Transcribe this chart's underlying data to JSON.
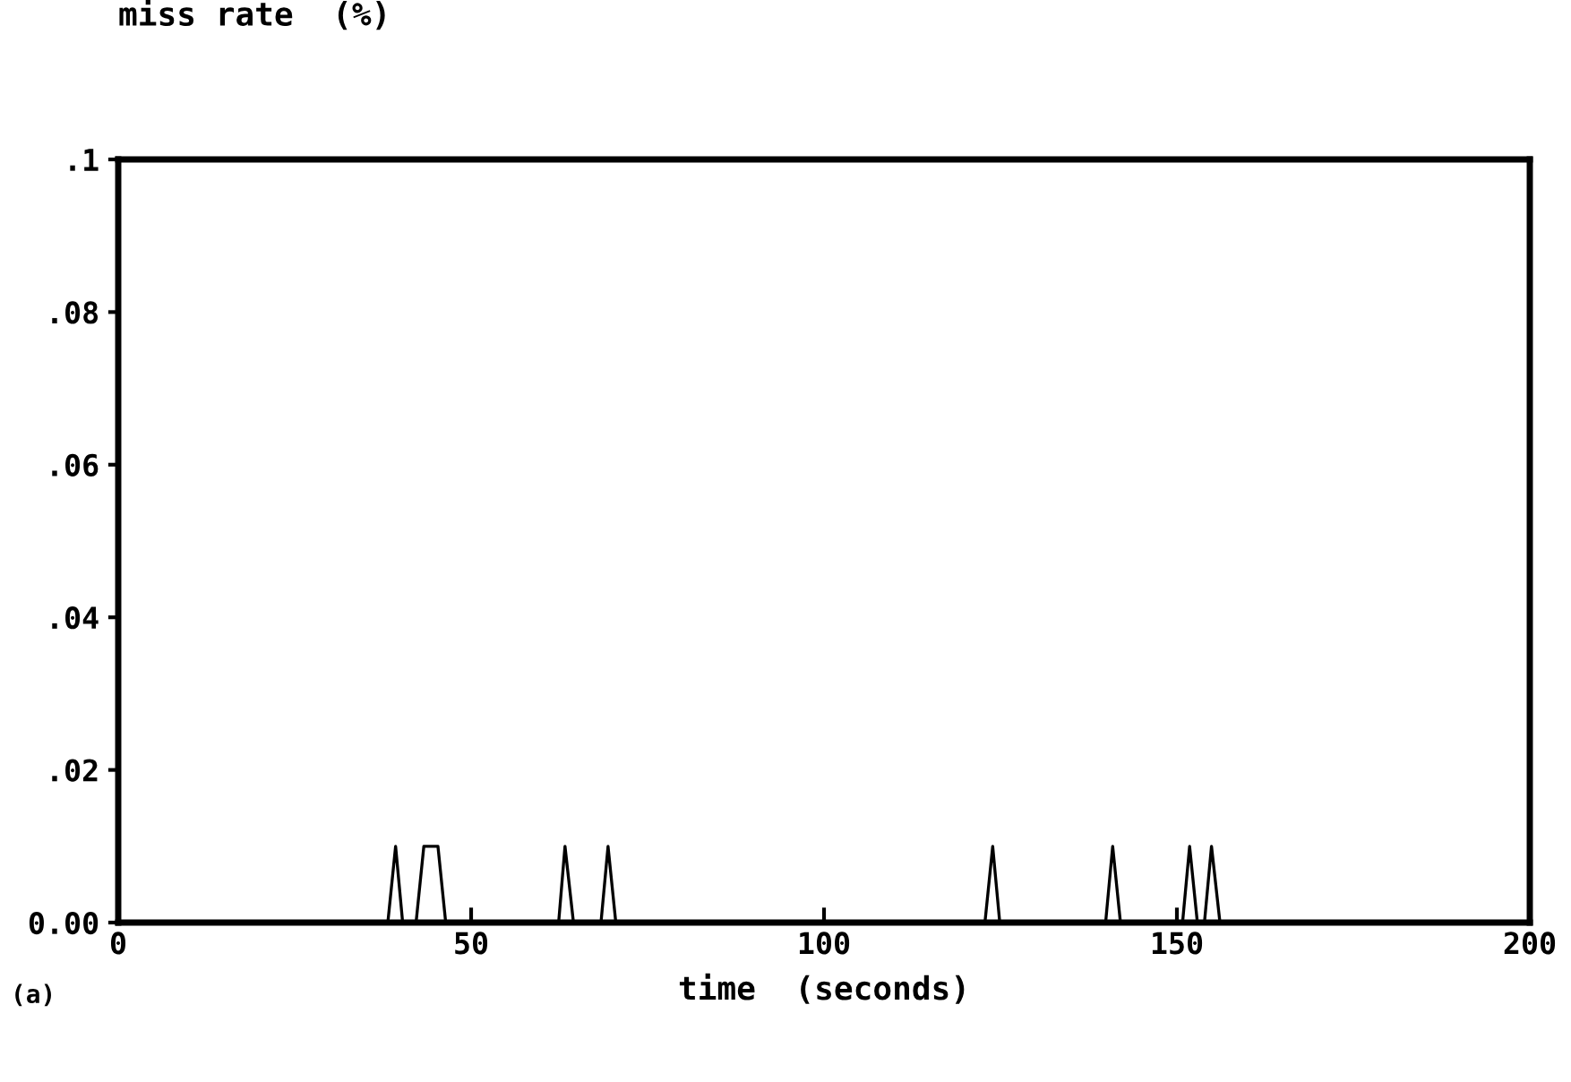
{
  "chart_data": {
    "type": "line",
    "ylabel": "miss rate  (%)",
    "xlabel": "time  (seconds)",
    "annotations": [
      "(a)"
    ],
    "series": [
      {
        "color": "#000000",
        "x": [
          0,
          38.2,
          39.3,
          40.3,
          42.2,
          43.3,
          45.3,
          46.4,
          62.4,
          63.3,
          64.5,
          68.4,
          69.4,
          70.5,
          122.8,
          123.9,
          124.9,
          139.9,
          140.9,
          142.0,
          150.8,
          151.8,
          152.9,
          153.9,
          154.9,
          156.1,
          200
        ],
        "values": [
          0,
          0,
          0.01,
          0,
          0,
          0.01,
          0.01,
          0,
          0,
          0.01,
          0,
          0,
          0.01,
          0,
          0,
          0.01,
          0,
          0,
          0.01,
          0,
          0,
          0.01,
          0,
          0,
          0.01,
          0,
          0
        ]
      }
    ],
    "xlim": [
      0,
      200
    ],
    "xticks": [
      0,
      50,
      100,
      150,
      200
    ],
    "ylim": [
      0,
      0.1
    ],
    "yticks": [
      {
        "value": 0,
        "label": "0.00"
      },
      {
        "value": 0.02,
        "label": ".02"
      },
      {
        "value": 0.04,
        "label": ".04"
      },
      {
        "value": 0.06,
        "label": ".06"
      },
      {
        "value": 0.08,
        "label": ".08"
      },
      {
        "value": 0.1,
        "label": ".1"
      }
    ],
    "grid": false,
    "legend": false,
    "marker": "none",
    "line_style": "solid"
  }
}
